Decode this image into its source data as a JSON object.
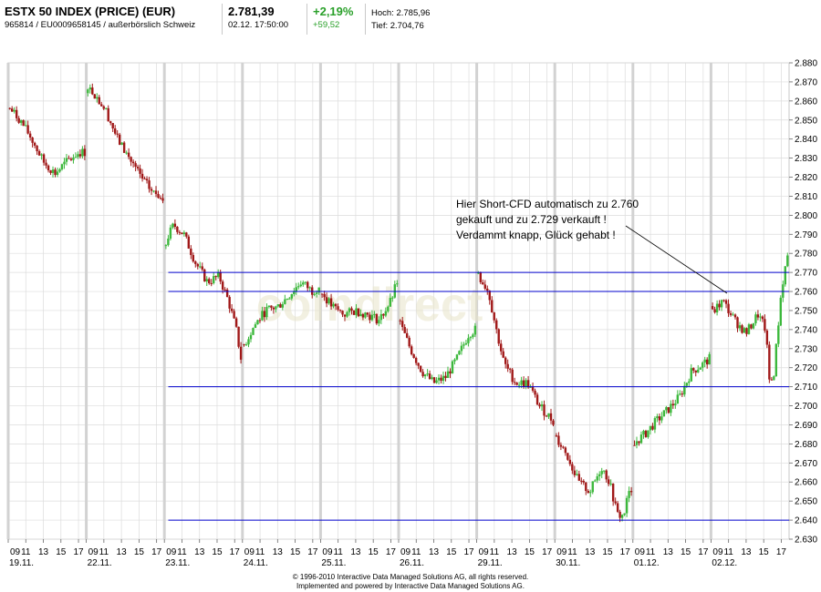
{
  "header": {
    "title": "ESTX 50 INDEX (PRICE) (EUR)",
    "subtitle": "965814 / EU0009658145 / außerbörslich Schweiz",
    "price": "2.781,39",
    "datetime": "02.12. 17:50:00",
    "change_pct": "+2,19%",
    "change_abs": "+59,52",
    "high": "Hoch: 2.785,96",
    "low": "Tief: 2.704,76"
  },
  "annotation": {
    "lines": [
      "Hier Short-CFD automatisch  zu 2.760",
      "gekauft und zu 2.729 verkauft !",
      "Verdammt knapp, Glück gehabt !"
    ]
  },
  "footer": {
    "line1": "© 1996-2010 Interactive Data Managed Solutions AG, all rights reserved.",
    "line2": "Implemented and powered by Interactive Data Managed Solutions AG."
  },
  "watermark": "comdirect",
  "colors": {
    "up": "#3cb83c",
    "down": "#a01818",
    "grid": "#dcdcdc",
    "levels": "#0000cc"
  },
  "chart_data": {
    "type": "candlestick",
    "ylim": [
      2630,
      2880
    ],
    "yticks": [
      "2.630",
      "2.640",
      "2.650",
      "2.660",
      "2.670",
      "2.680",
      "2.690",
      "2.700",
      "2.710",
      "2.720",
      "2.730",
      "2.740",
      "2.750",
      "2.760",
      "2.770",
      "2.780",
      "2.790",
      "2.800",
      "2.810",
      "2.820",
      "2.830",
      "2.840",
      "2.850",
      "2.860",
      "2.870",
      "2.880"
    ],
    "days": [
      {
        "date": "19.11.",
        "hours": [
          "09",
          "11",
          "13",
          "15",
          "17"
        ]
      },
      {
        "date": "22.11.",
        "hours": [
          "09",
          "11",
          "13",
          "15",
          "17"
        ]
      },
      {
        "date": "23.11.",
        "hours": [
          "09",
          "11",
          "13",
          "15",
          "17"
        ]
      },
      {
        "date": "24.11.",
        "hours": [
          "09",
          "11",
          "13",
          "15",
          "17"
        ]
      },
      {
        "date": "25.11.",
        "hours": [
          "09",
          "11",
          "13",
          "15",
          "17"
        ]
      },
      {
        "date": "26.11.",
        "hours": [
          "09",
          "11",
          "13",
          "15",
          "17"
        ]
      },
      {
        "date": "29.11.",
        "hours": [
          "09",
          "11",
          "13",
          "15",
          "17"
        ]
      },
      {
        "date": "30.11.",
        "hours": [
          "09",
          "11",
          "13",
          "15",
          "17"
        ]
      },
      {
        "date": "01.12.",
        "hours": [
          "09",
          "11",
          "13",
          "15",
          "17"
        ]
      },
      {
        "date": "02.12.",
        "hours": [
          "09",
          "11",
          "13",
          "15",
          "17"
        ]
      }
    ],
    "horizontal_levels": [
      {
        "value": 2770,
        "start_day": 2
      },
      {
        "value": 2760,
        "start_day": 2
      },
      {
        "value": 2710,
        "start_day": 2
      },
      {
        "value": 2640,
        "start_day": 2
      }
    ],
    "close_path": [
      [
        0,
        0.0,
        2857
      ],
      [
        0,
        0.15,
        2850
      ],
      [
        0,
        0.3,
        2840
      ],
      [
        0,
        0.45,
        2828
      ],
      [
        0,
        0.6,
        2822
      ],
      [
        0,
        0.75,
        2828
      ],
      [
        0,
        0.9,
        2833
      ],
      [
        1,
        0.0,
        2868
      ],
      [
        1,
        0.1,
        2864
      ],
      [
        1,
        0.25,
        2855
      ],
      [
        1,
        0.4,
        2840
      ],
      [
        1,
        0.55,
        2830
      ],
      [
        1,
        0.7,
        2820
      ],
      [
        1,
        0.85,
        2812
      ],
      [
        1,
        0.98,
        2810
      ],
      [
        2,
        0.0,
        2785
      ],
      [
        2,
        0.12,
        2795
      ],
      [
        2,
        0.25,
        2790
      ],
      [
        2,
        0.4,
        2775
      ],
      [
        2,
        0.55,
        2765
      ],
      [
        2,
        0.7,
        2768
      ],
      [
        2,
        0.82,
        2755
      ],
      [
        2,
        0.92,
        2740
      ],
      [
        2,
        0.98,
        2725
      ],
      [
        3,
        0.0,
        2730
      ],
      [
        3,
        0.15,
        2742
      ],
      [
        3,
        0.3,
        2750
      ],
      [
        3,
        0.45,
        2752
      ],
      [
        3,
        0.6,
        2758
      ],
      [
        3,
        0.75,
        2765
      ],
      [
        3,
        0.9,
        2760
      ],
      [
        3,
        0.98,
        2763
      ],
      [
        4,
        0.0,
        2760
      ],
      [
        4,
        0.15,
        2752
      ],
      [
        4,
        0.3,
        2748
      ],
      [
        4,
        0.45,
        2750
      ],
      [
        4,
        0.6,
        2748
      ],
      [
        4,
        0.75,
        2745
      ],
      [
        4,
        0.9,
        2755
      ],
      [
        4,
        0.98,
        2765
      ],
      [
        5,
        0.0,
        2745
      ],
      [
        5,
        0.15,
        2730
      ],
      [
        5,
        0.3,
        2718
      ],
      [
        5,
        0.45,
        2712
      ],
      [
        5,
        0.6,
        2715
      ],
      [
        5,
        0.75,
        2725
      ],
      [
        5,
        0.9,
        2738
      ],
      [
        5,
        0.98,
        2740
      ],
      [
        6,
        0.0,
        2770
      ],
      [
        6,
        0.15,
        2760
      ],
      [
        6,
        0.25,
        2740
      ],
      [
        6,
        0.35,
        2722
      ],
      [
        6,
        0.5,
        2712
      ],
      [
        6,
        0.65,
        2712
      ],
      [
        6,
        0.8,
        2700
      ],
      [
        6,
        0.98,
        2692
      ],
      [
        7,
        0.0,
        2685
      ],
      [
        7,
        0.15,
        2675
      ],
      [
        7,
        0.3,
        2660
      ],
      [
        7,
        0.45,
        2655
      ],
      [
        7,
        0.6,
        2668
      ],
      [
        7,
        0.7,
        2660
      ],
      [
        7,
        0.8,
        2643
      ],
      [
        7,
        0.88,
        2642
      ],
      [
        7,
        0.95,
        2655
      ],
      [
        7,
        0.99,
        2652
      ],
      [
        8,
        0.0,
        2680
      ],
      [
        8,
        0.15,
        2685
      ],
      [
        8,
        0.3,
        2692
      ],
      [
        8,
        0.45,
        2698
      ],
      [
        8,
        0.6,
        2705
      ],
      [
        8,
        0.75,
        2718
      ],
      [
        8,
        0.9,
        2722
      ],
      [
        8,
        0.99,
        2725
      ],
      [
        9,
        0.0,
        2748
      ],
      [
        9,
        0.15,
        2755
      ],
      [
        9,
        0.3,
        2745
      ],
      [
        9,
        0.45,
        2738
      ],
      [
        9,
        0.6,
        2748
      ],
      [
        9,
        0.7,
        2740
      ],
      [
        9,
        0.75,
        2712
      ],
      [
        9,
        0.8,
        2715
      ],
      [
        9,
        0.9,
        2760
      ],
      [
        9,
        0.99,
        2782
      ]
    ]
  }
}
